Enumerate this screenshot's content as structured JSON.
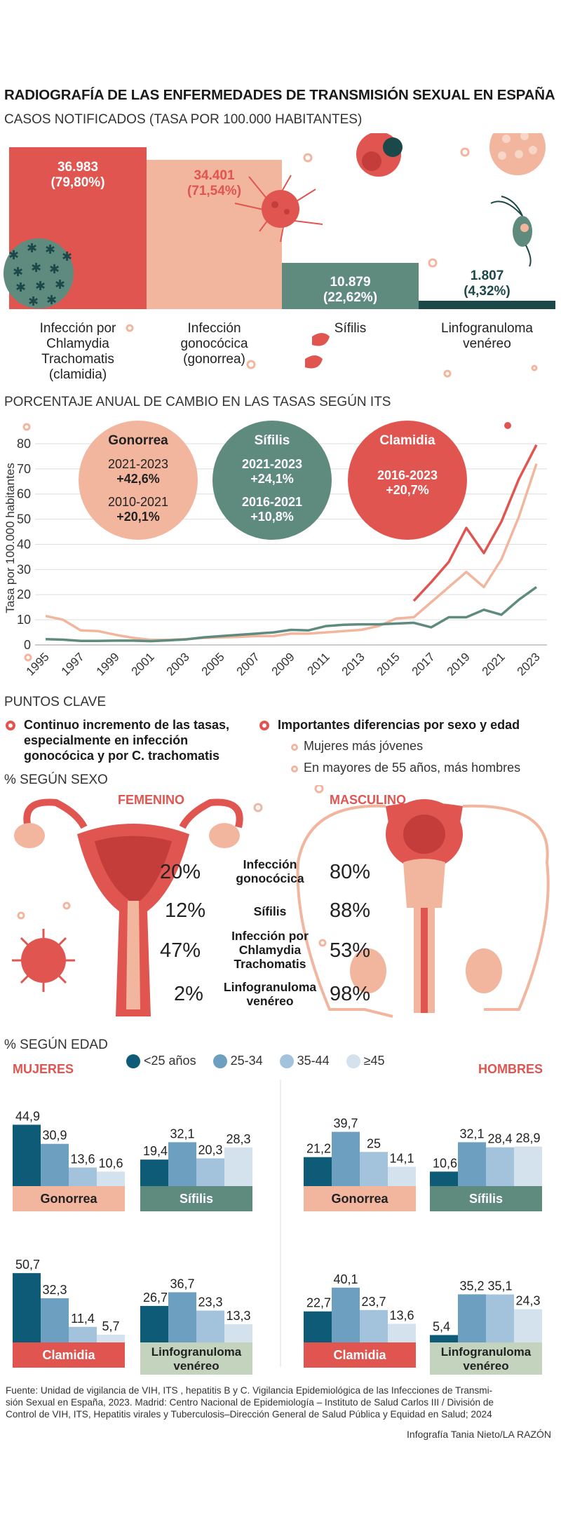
{
  "title": "RADIOGRAFÍA DE LAS ENFERMEDADES DE TRANSMISIÓN SEXUAL EN ESPAÑA",
  "section1": {
    "title": "CASOS NOTIFICADOS (TASA POR 100.000 HABITANTES)",
    "bars": [
      {
        "label1": "Infección por",
        "label2": "Chlamydia",
        "label3": "Trachomatis",
        "label4": "(clamidia)",
        "value": "36.983",
        "pct": "(79,80%)"
      },
      {
        "label1": "Infección",
        "label2": "gonocócica",
        "label3": "(gonorrea)",
        "label4": "",
        "value": "34.401",
        "pct": "(71,54%)"
      },
      {
        "label1": "Sífilis",
        "label2": "",
        "label3": "",
        "label4": "",
        "value": "10.879",
        "pct": "(22,62%)"
      },
      {
        "label1": "Linfogranuloma",
        "label2": "venéreo",
        "label3": "",
        "label4": "",
        "value": "1.807",
        "pct": "(4,32%)"
      }
    ]
  },
  "section2": {
    "title": "PORCENTAJE ANUAL DE CAMBIO EN LAS TASAS SEGÚN ITS",
    "bubbles": {
      "gonorrea": {
        "name": "Gonorrea",
        "p1": "2021-2023",
        "v1": "+42,6%",
        "p2": "2010-2021",
        "v2": "+20,1%"
      },
      "sifilis": {
        "name": "Sífilis",
        "p1": "2021-2023",
        "v1": "+24,1%",
        "p2": "2016-2021",
        "v2": "+10,8%"
      },
      "clamidia": {
        "name": "Clamidia",
        "p1": "2016-2023",
        "v1": "+20,7%"
      }
    }
  },
  "chart_data": [
    {
      "type": "bar",
      "title": "CASOS NOTIFICADOS (TASA POR 100.000 HABITANTES)",
      "categories": [
        "Infección por Chlamydia Trachomatis (clamidia)",
        "Infección gonocócica (gonorrea)",
        "Sífilis",
        "Linfogranuloma venéreo"
      ],
      "values": [
        36983,
        34401,
        10879,
        1807
      ],
      "data_labels": [
        "36.983 (79,80%)",
        "34.401 (71,54%)",
        "10.879 (22,62%)",
        "1.807 (4,32%)"
      ],
      "colors": [
        "#e05550",
        "#f2b59e",
        "#5f8b7e",
        "#1b4848"
      ]
    },
    {
      "type": "line",
      "title": "PORCENTAJE ANUAL DE CAMBIO EN LAS TASAS SEGÚN ITS",
      "ylabel": "Tasa por 100.000 habitantes",
      "ylim": [
        0,
        85
      ],
      "yticks": [
        0,
        10,
        20,
        30,
        40,
        50,
        60,
        70,
        80
      ],
      "xticks": [
        1995,
        1997,
        1999,
        2001,
        2003,
        2005,
        2007,
        2009,
        2011,
        2013,
        2015,
        2017,
        2019,
        2021,
        2023
      ],
      "grid": true,
      "series": [
        {
          "color": "#f2b59e",
          "x": [
            1995,
            1996,
            1997,
            1998,
            1999,
            2000,
            2001,
            2002,
            2003,
            2004,
            2005,
            2006,
            2007,
            2008,
            2009,
            2010,
            2011,
            2012,
            2013,
            2014,
            2015,
            2016,
            2017,
            2018,
            2019,
            2020,
            2021,
            2022,
            2023
          ],
          "y": [
            11.5,
            10,
            5.8,
            5.5,
            4,
            2.8,
            2,
            2,
            2.3,
            2.8,
            3,
            3.2,
            3.5,
            3.5,
            4.5,
            4.5,
            5,
            5.5,
            6,
            7.5,
            10.5,
            11,
            17,
            23,
            29,
            23,
            34,
            51,
            72
          ]
        },
        {
          "color": "#5f8b7e",
          "x": [
            1995,
            1996,
            1997,
            1998,
            1999,
            2000,
            2001,
            2002,
            2003,
            2004,
            2005,
            2006,
            2007,
            2008,
            2009,
            2010,
            2011,
            2012,
            2013,
            2014,
            2015,
            2016,
            2017,
            2018,
            2019,
            2020,
            2021,
            2022,
            2023
          ],
          "y": [
            2.3,
            2.1,
            1.6,
            1.6,
            1.7,
            1.7,
            1.5,
            1.8,
            2.2,
            3,
            3.5,
            4,
            4.5,
            5,
            6,
            5.8,
            7.5,
            8,
            8.2,
            8.2,
            8.5,
            8.8,
            7,
            11,
            11,
            14,
            12,
            18,
            23
          ]
        },
        {
          "color": "#e05550",
          "x": [
            2016,
            2017,
            2018,
            2019,
            2020,
            2021,
            2022,
            2023
          ],
          "y": [
            17.5,
            25,
            33,
            46.5,
            36.5,
            49,
            66,
            79.5
          ]
        }
      ]
    },
    {
      "type": "table",
      "title": "% SEGÚN SEXO",
      "columns": [
        "FEMENINO",
        "MASCULINO"
      ],
      "rows": [
        {
          "name": "Infección gonocócica",
          "f": 20,
          "m": 80
        },
        {
          "name": "Sífilis",
          "f": 12,
          "m": 88
        },
        {
          "name": "Infección por Chlamydia Trachomatis",
          "f": 47,
          "m": 53
        },
        {
          "name": "Linfogranuloma venéreo",
          "f": 2,
          "m": 98
        }
      ]
    },
    {
      "type": "bar",
      "title": "% SEGÚN EDAD",
      "legend": [
        "<25 años",
        "25-34",
        "35-44",
        "≥45"
      ],
      "legend_colors": [
        "#0e5b78",
        "#6d9fc0",
        "#a3c3dc",
        "#d4e2ee"
      ],
      "panels": [
        {
          "group": "MUJERES",
          "disease": "Gonorrea",
          "values": [
            44.9,
            30.9,
            13.6,
            10.6
          ]
        },
        {
          "group": "MUJERES",
          "disease": "Sífilis",
          "values": [
            19.4,
            32.1,
            20.3,
            28.3
          ]
        },
        {
          "group": "MUJERES",
          "disease": "Clamidia",
          "values": [
            50.7,
            32.3,
            11.4,
            5.7
          ]
        },
        {
          "group": "MUJERES",
          "disease": "Linfogranuloma venéreo",
          "values": [
            26.7,
            36.7,
            23.3,
            13.3
          ]
        },
        {
          "group": "HOMBRES",
          "disease": "Gonorrea",
          "values": [
            21.2,
            39.7,
            25,
            14.1
          ]
        },
        {
          "group": "HOMBRES",
          "disease": "Sífilis",
          "values": [
            10.6,
            32.1,
            28.4,
            28.9
          ]
        },
        {
          "group": "HOMBRES",
          "disease": "Clamidia",
          "values": [
            22.7,
            40.1,
            23.7,
            13.6
          ]
        },
        {
          "group": "HOMBRES",
          "disease": "Linfogranuloma venéreo",
          "values": [
            5.4,
            35.2,
            35.1,
            24.3
          ]
        }
      ]
    }
  ],
  "keypoints": {
    "title": "PUNTOS CLAVE",
    "k1_line1": "Continuo incremento de las tasas,",
    "k1_line2": "especialmente en infección",
    "k1_line3": "gonocócica y por C. trachomatis",
    "k2": "Importantes diferencias por sexo y edad",
    "k2_sub1": "Mujeres más jóvenes",
    "k2_sub2": "En mayores de 55 años, más hombres"
  },
  "sex": {
    "title": "% SEGÚN SEXO",
    "female": "FEMENINO",
    "male": "MASCULINO",
    "rows": [
      {
        "l1": "Infección",
        "l2": "gonocócica",
        "l3": "",
        "f": "20%",
        "m": "80%"
      },
      {
        "l1": "Sífilis",
        "l2": "",
        "l3": "",
        "f": "12%",
        "m": "88%"
      },
      {
        "l1": "Infección por",
        "l2": "Chlamydia",
        "l3": "Trachomatis",
        "f": "47%",
        "m": "53%"
      },
      {
        "l1": "Linfogranuloma",
        "l2": "venéreo",
        "l3": "",
        "f": "2%",
        "m": "98%"
      }
    ]
  },
  "age": {
    "title": "% SEGÚN EDAD",
    "women": "MUJERES",
    "men": "HOMBRES",
    "legend": [
      "<25 años",
      "25-34",
      "35-44",
      "≥45"
    ]
  },
  "source": {
    "line1": "Fuente: Unidad de vigilancia de VIH, ITS , hepatitis B y C. Vigilancia Epidemiológica de las Infecciones de Transmi-",
    "line2": "sión Sexual en España, 2023. Madrid: Centro Nacional de Epidemiología – Instituto de Salud Carlos III / División de",
    "line3": "Control de VIH, ITS, Hepatitis virales y Tuberculosis–Dirección General de Salud Pública y Equidad en Salud; 2024",
    "credit": "Infografía Tania Nieto/LA RAZÓN"
  }
}
